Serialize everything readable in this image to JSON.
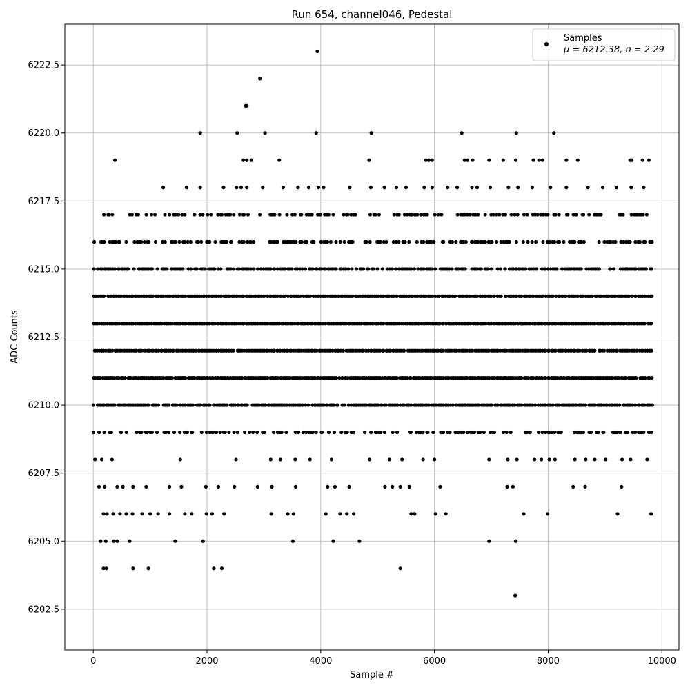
{
  "chart_data": {
    "type": "scatter",
    "title": "Run 654, channel046, Pedestal",
    "xlabel": "Sample #",
    "ylabel": "ADC Counts",
    "xlim": [
      -500,
      10300
    ],
    "ylim": [
      6201,
      6224
    ],
    "xticks": [
      0,
      2000,
      4000,
      6000,
      8000,
      10000
    ],
    "xtick_labels": [
      "0",
      "2000",
      "4000",
      "6000",
      "8000",
      "10000"
    ],
    "yticks": [
      6202.5,
      6205.0,
      6207.5,
      6210.0,
      6212.5,
      6215.0,
      6217.5,
      6220.0,
      6222.5
    ],
    "ytick_labels": [
      "6202.5",
      "6205.0",
      "6207.5",
      "6210.0",
      "6212.5",
      "6215.0",
      "6217.5",
      "6220.0",
      "6222.5"
    ],
    "grid": true,
    "legend_position": "top-right",
    "series": [
      {
        "name": "Samples",
        "stats_label": "μ = 6212.38, σ = 2.29",
        "color": "#000000",
        "n_samples": 9830,
        "dense_levels": [
          {
            "adc": 6209,
            "fill": 0.45
          },
          {
            "adc": 6210,
            "fill": 0.9
          },
          {
            "adc": 6211,
            "fill": 0.98
          },
          {
            "adc": 6212,
            "fill": 0.98
          },
          {
            "adc": 6213,
            "fill": 0.98
          },
          {
            "adc": 6214,
            "fill": 0.95
          },
          {
            "adc": 6215,
            "fill": 0.7
          },
          {
            "adc": 6216,
            "fill": 0.55
          },
          {
            "adc": 6217,
            "fill": 0.45
          }
        ],
        "sparse_points": [
          {
            "x": 380,
            "y": 6219
          },
          {
            "x": 1880,
            "y": 6220
          },
          {
            "x": 2530,
            "y": 6220
          },
          {
            "x": 2680,
            "y": 6221
          },
          {
            "x": 2700,
            "y": 6221
          },
          {
            "x": 2930,
            "y": 6222
          },
          {
            "x": 3020,
            "y": 6220
          },
          {
            "x": 3940,
            "y": 6223
          },
          {
            "x": 3920,
            "y": 6220
          },
          {
            "x": 4890,
            "y": 6220
          },
          {
            "x": 6480,
            "y": 6220
          },
          {
            "x": 7440,
            "y": 6220
          },
          {
            "x": 8100,
            "y": 6220
          },
          {
            "x": 2640,
            "y": 6219
          },
          {
            "x": 2700,
            "y": 6219
          },
          {
            "x": 2780,
            "y": 6219
          },
          {
            "x": 3270,
            "y": 6219
          },
          {
            "x": 4850,
            "y": 6219
          },
          {
            "x": 5850,
            "y": 6219
          },
          {
            "x": 5900,
            "y": 6219
          },
          {
            "x": 5960,
            "y": 6219
          },
          {
            "x": 6530,
            "y": 6219
          },
          {
            "x": 6580,
            "y": 6219
          },
          {
            "x": 6670,
            "y": 6219
          },
          {
            "x": 6960,
            "y": 6219
          },
          {
            "x": 7210,
            "y": 6219
          },
          {
            "x": 7430,
            "y": 6219
          },
          {
            "x": 7740,
            "y": 6219
          },
          {
            "x": 7840,
            "y": 6219
          },
          {
            "x": 7900,
            "y": 6219
          },
          {
            "x": 8320,
            "y": 6219
          },
          {
            "x": 8520,
            "y": 6219
          },
          {
            "x": 9440,
            "y": 6219
          },
          {
            "x": 9470,
            "y": 6219
          },
          {
            "x": 9660,
            "y": 6219
          },
          {
            "x": 9770,
            "y": 6219
          },
          {
            "x": 1230,
            "y": 6218
          },
          {
            "x": 1640,
            "y": 6218
          },
          {
            "x": 1880,
            "y": 6218
          },
          {
            "x": 2290,
            "y": 6218
          },
          {
            "x": 2520,
            "y": 6218
          },
          {
            "x": 2600,
            "y": 6218
          },
          {
            "x": 2700,
            "y": 6218
          },
          {
            "x": 2980,
            "y": 6218
          },
          {
            "x": 3340,
            "y": 6218
          },
          {
            "x": 3600,
            "y": 6218
          },
          {
            "x": 3790,
            "y": 6218
          },
          {
            "x": 3960,
            "y": 6218
          },
          {
            "x": 4050,
            "y": 6218
          },
          {
            "x": 4510,
            "y": 6218
          },
          {
            "x": 4880,
            "y": 6218
          },
          {
            "x": 5120,
            "y": 6218
          },
          {
            "x": 5330,
            "y": 6218
          },
          {
            "x": 5500,
            "y": 6218
          },
          {
            "x": 5820,
            "y": 6218
          },
          {
            "x": 5960,
            "y": 6218
          },
          {
            "x": 6230,
            "y": 6218
          },
          {
            "x": 6400,
            "y": 6218
          },
          {
            "x": 6660,
            "y": 6218
          },
          {
            "x": 6750,
            "y": 6218
          },
          {
            "x": 6980,
            "y": 6218
          },
          {
            "x": 7300,
            "y": 6218
          },
          {
            "x": 7470,
            "y": 6218
          },
          {
            "x": 7720,
            "y": 6218
          },
          {
            "x": 8040,
            "y": 6218
          },
          {
            "x": 8320,
            "y": 6218
          },
          {
            "x": 8700,
            "y": 6218
          },
          {
            "x": 8960,
            "y": 6218
          },
          {
            "x": 9200,
            "y": 6218
          },
          {
            "x": 9460,
            "y": 6218
          },
          {
            "x": 9680,
            "y": 6218
          },
          {
            "x": 30,
            "y": 6208
          },
          {
            "x": 150,
            "y": 6208
          },
          {
            "x": 330,
            "y": 6208
          },
          {
            "x": 1530,
            "y": 6208
          },
          {
            "x": 2510,
            "y": 6208
          },
          {
            "x": 3120,
            "y": 6208
          },
          {
            "x": 3290,
            "y": 6208
          },
          {
            "x": 3550,
            "y": 6208
          },
          {
            "x": 3810,
            "y": 6208
          },
          {
            "x": 4190,
            "y": 6208
          },
          {
            "x": 4860,
            "y": 6208
          },
          {
            "x": 5210,
            "y": 6208
          },
          {
            "x": 5430,
            "y": 6208
          },
          {
            "x": 5800,
            "y": 6208
          },
          {
            "x": 6000,
            "y": 6208
          },
          {
            "x": 6960,
            "y": 6208
          },
          {
            "x": 7290,
            "y": 6208
          },
          {
            "x": 7450,
            "y": 6208
          },
          {
            "x": 7760,
            "y": 6208
          },
          {
            "x": 7880,
            "y": 6208
          },
          {
            "x": 8020,
            "y": 6208
          },
          {
            "x": 8120,
            "y": 6208
          },
          {
            "x": 8470,
            "y": 6208
          },
          {
            "x": 8660,
            "y": 6208
          },
          {
            "x": 8820,
            "y": 6208
          },
          {
            "x": 9010,
            "y": 6208
          },
          {
            "x": 9300,
            "y": 6208
          },
          {
            "x": 9450,
            "y": 6208
          },
          {
            "x": 9740,
            "y": 6208
          },
          {
            "x": 100,
            "y": 6207
          },
          {
            "x": 200,
            "y": 6207
          },
          {
            "x": 420,
            "y": 6207
          },
          {
            "x": 520,
            "y": 6207
          },
          {
            "x": 700,
            "y": 6207
          },
          {
            "x": 930,
            "y": 6207
          },
          {
            "x": 1340,
            "y": 6207
          },
          {
            "x": 1550,
            "y": 6207
          },
          {
            "x": 1980,
            "y": 6207
          },
          {
            "x": 2200,
            "y": 6207
          },
          {
            "x": 2480,
            "y": 6207
          },
          {
            "x": 2890,
            "y": 6207
          },
          {
            "x": 3140,
            "y": 6207
          },
          {
            "x": 3560,
            "y": 6207
          },
          {
            "x": 4120,
            "y": 6207
          },
          {
            "x": 4250,
            "y": 6207
          },
          {
            "x": 4500,
            "y": 6207
          },
          {
            "x": 5130,
            "y": 6207
          },
          {
            "x": 5260,
            "y": 6207
          },
          {
            "x": 5400,
            "y": 6207
          },
          {
            "x": 5560,
            "y": 6207
          },
          {
            "x": 6100,
            "y": 6207
          },
          {
            "x": 7280,
            "y": 6207
          },
          {
            "x": 7380,
            "y": 6207
          },
          {
            "x": 8440,
            "y": 6207
          },
          {
            "x": 8650,
            "y": 6207
          },
          {
            "x": 9290,
            "y": 6207
          },
          {
            "x": 180,
            "y": 6206
          },
          {
            "x": 240,
            "y": 6206
          },
          {
            "x": 350,
            "y": 6206
          },
          {
            "x": 470,
            "y": 6206
          },
          {
            "x": 580,
            "y": 6206
          },
          {
            "x": 690,
            "y": 6206
          },
          {
            "x": 860,
            "y": 6206
          },
          {
            "x": 1000,
            "y": 6206
          },
          {
            "x": 1140,
            "y": 6206
          },
          {
            "x": 1340,
            "y": 6206
          },
          {
            "x": 1610,
            "y": 6206
          },
          {
            "x": 1730,
            "y": 6206
          },
          {
            "x": 1990,
            "y": 6206
          },
          {
            "x": 2090,
            "y": 6206
          },
          {
            "x": 2300,
            "y": 6206
          },
          {
            "x": 3130,
            "y": 6206
          },
          {
            "x": 3420,
            "y": 6206
          },
          {
            "x": 3520,
            "y": 6206
          },
          {
            "x": 4090,
            "y": 6206
          },
          {
            "x": 4340,
            "y": 6206
          },
          {
            "x": 4460,
            "y": 6206
          },
          {
            "x": 4580,
            "y": 6206
          },
          {
            "x": 5590,
            "y": 6206
          },
          {
            "x": 5650,
            "y": 6206
          },
          {
            "x": 6020,
            "y": 6206
          },
          {
            "x": 6200,
            "y": 6206
          },
          {
            "x": 7570,
            "y": 6206
          },
          {
            "x": 7990,
            "y": 6206
          },
          {
            "x": 9220,
            "y": 6206
          },
          {
            "x": 9810,
            "y": 6206
          },
          {
            "x": 130,
            "y": 6205
          },
          {
            "x": 220,
            "y": 6205
          },
          {
            "x": 360,
            "y": 6205
          },
          {
            "x": 420,
            "y": 6205
          },
          {
            "x": 640,
            "y": 6205
          },
          {
            "x": 1440,
            "y": 6205
          },
          {
            "x": 1930,
            "y": 6205
          },
          {
            "x": 3510,
            "y": 6205
          },
          {
            "x": 4220,
            "y": 6205
          },
          {
            "x": 4680,
            "y": 6205
          },
          {
            "x": 6960,
            "y": 6205
          },
          {
            "x": 7430,
            "y": 6205
          },
          {
            "x": 180,
            "y": 6204
          },
          {
            "x": 230,
            "y": 6204
          },
          {
            "x": 700,
            "y": 6204
          },
          {
            "x": 970,
            "y": 6204
          },
          {
            "x": 2120,
            "y": 6204
          },
          {
            "x": 2260,
            "y": 6204
          },
          {
            "x": 5400,
            "y": 6204
          },
          {
            "x": 7420,
            "y": 6203
          }
        ]
      }
    ]
  }
}
